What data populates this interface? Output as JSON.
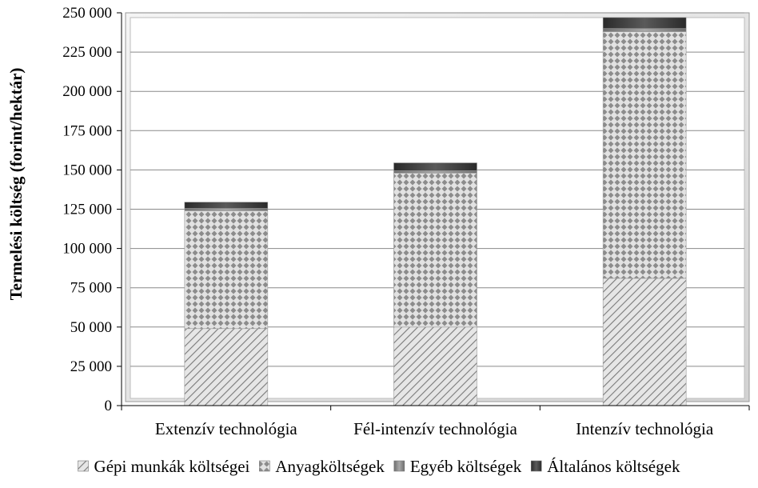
{
  "chart_data": {
    "type": "bar",
    "stacked": true,
    "categories": [
      "Extenzív technológia",
      "Fél-intenzív technológia",
      "Intenzív technológia"
    ],
    "series": [
      {
        "name": "Gépi munkák költségei",
        "values": [
          49000,
          50000,
          81000
        ],
        "color": "#cfcfcf",
        "pattern": "diagonal"
      },
      {
        "name": "Anyagköltségek",
        "values": [
          75000,
          98000,
          157000
        ],
        "color": "#c9c9c9",
        "pattern": "checker"
      },
      {
        "name": "Egyéb költségek",
        "values": [
          1500,
          1500,
          2000
        ],
        "color": "#8a8a8a",
        "pattern": "solid"
      },
      {
        "name": "Általános költségek",
        "values": [
          4000,
          5000,
          7000
        ],
        "color": "#3c3c3c",
        "pattern": "solid"
      }
    ],
    "ylabel": "Termelési költség (forint/hektár)",
    "xlabel": "",
    "title": "",
    "ylim": [
      0,
      250000
    ],
    "yticks": [
      0,
      25000,
      50000,
      75000,
      100000,
      125000,
      150000,
      175000,
      200000,
      225000,
      250000
    ],
    "ytick_labels": [
      "0",
      "25 000",
      "50 000",
      "75 000",
      "100 000",
      "125 000",
      "150 000",
      "175 000",
      "200 000",
      "225 000",
      "250 000"
    ],
    "grid": true,
    "legend_position": "bottom"
  }
}
